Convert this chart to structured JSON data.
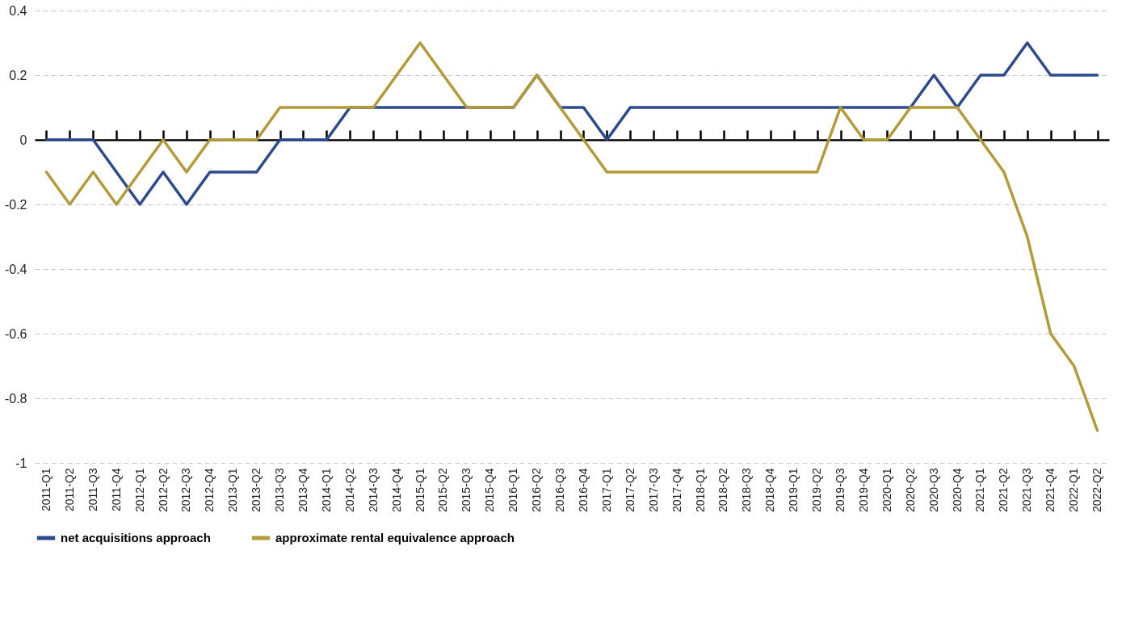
{
  "chart_data": {
    "type": "line",
    "categories": [
      "2011-Q1",
      "2011-Q2",
      "2011-Q3",
      "2011-Q4",
      "2012-Q1",
      "2012-Q2",
      "2012-Q3",
      "2012-Q4",
      "2013-Q1",
      "2013-Q2",
      "2013-Q3",
      "2013-Q4",
      "2014-Q1",
      "2014-Q2",
      "2014-Q3",
      "2014-Q4",
      "2015-Q1",
      "2015-Q2",
      "2015-Q3",
      "2015-Q4",
      "2016-Q1",
      "2016-Q2",
      "2016-Q3",
      "2016-Q4",
      "2017-Q1",
      "2017-Q2",
      "2017-Q3",
      "2017-Q4",
      "2018-Q1",
      "2018-Q2",
      "2018-Q3",
      "2018-Q4",
      "2019-Q1",
      "2019-Q2",
      "2019-Q3",
      "2019-Q4",
      "2020-Q1",
      "2020-Q2",
      "2020-Q3",
      "2020-Q4",
      "2021-Q1",
      "2021-Q2",
      "2021-Q3",
      "2021-Q4",
      "2022-Q1",
      "2022-Q2"
    ],
    "series": [
      {
        "name": "net acquisitions approach",
        "color": "#2e4a8f",
        "values": [
          0,
          0,
          0,
          -0.1,
          -0.2,
          -0.1,
          -0.2,
          -0.1,
          -0.1,
          -0.1,
          0,
          0,
          0,
          0.1,
          0.1,
          0.1,
          0.1,
          0.1,
          0.1,
          0.1,
          0.1,
          0.2,
          0.1,
          0.1,
          0,
          0.1,
          0.1,
          0.1,
          0.1,
          0.1,
          0.1,
          0.1,
          0.1,
          0.1,
          0.1,
          0.1,
          0.1,
          0.1,
          0.2,
          0.1,
          0.2,
          0.2,
          0.3,
          0.2,
          0.2,
          0.2
        ]
      },
      {
        "name": "approximate rental equivalence approach",
        "color": "#b39b3a",
        "values": [
          -0.1,
          -0.2,
          -0.1,
          -0.2,
          -0.1,
          0,
          -0.1,
          0,
          0,
          0,
          0.1,
          0.1,
          0.1,
          0.1,
          0.1,
          0.2,
          0.3,
          0.2,
          0.1,
          0.1,
          0.1,
          0.2,
          0.1,
          0,
          -0.1,
          -0.1,
          -0.1,
          -0.1,
          -0.1,
          -0.1,
          -0.1,
          -0.1,
          -0.1,
          -0.1,
          0.1,
          0,
          0,
          0.1,
          0.1,
          0.1,
          0,
          -0.1,
          -0.3,
          -0.6,
          -0.7,
          -0.9
        ]
      }
    ],
    "ylim": [
      -1,
      0.4
    ],
    "yticks": [
      {
        "value": -1,
        "label": "-1"
      },
      -0.8,
      -0.6,
      -0.4,
      -0.2,
      0,
      0.2,
      0.4
    ],
    "grid": "y",
    "legend": "bottom",
    "line_style": "solid",
    "marker": "none"
  }
}
